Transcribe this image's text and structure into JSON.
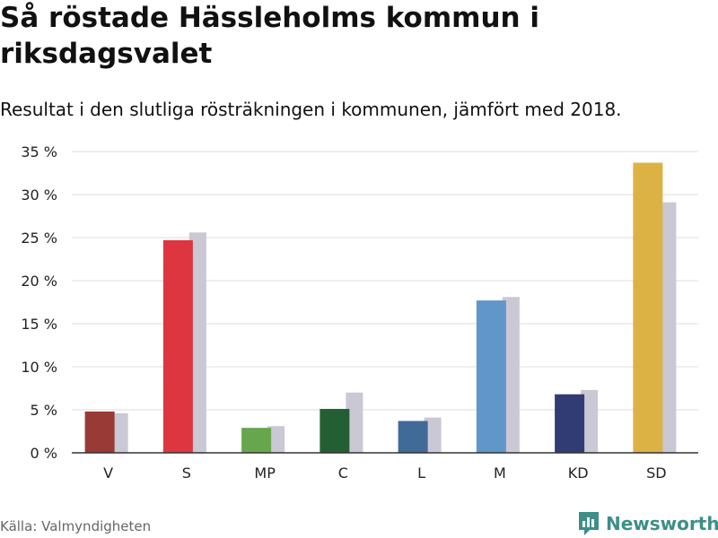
{
  "header": {
    "title": "Så röstade Hässleholms kommun i riksdagsvalet",
    "subtitle": "Resultat i den slutliga rösträkningen i kommunen, jämfört med 2018."
  },
  "footer": {
    "source": "Källa: Valmyndigheten",
    "logo_text": "Newsworthy"
  },
  "colors": {
    "previous": "#c9c8d4",
    "gridline": "#dddddd",
    "axis": "#333333",
    "logo": "#3e8e88"
  },
  "chart_data": {
    "type": "bar",
    "categories": [
      "V",
      "S",
      "MP",
      "C",
      "L",
      "M",
      "KD",
      "SD"
    ],
    "series": [
      {
        "values": [
          4.8,
          24.7,
          2.9,
          5.1,
          3.7,
          17.7,
          6.8,
          33.7
        ],
        "colors": [
          "#993a36",
          "#dd3640",
          "#67a64c",
          "#245f33",
          "#406a98",
          "#6097c8",
          "#303c73",
          "#ddb244"
        ]
      },
      {
        "values": [
          4.6,
          25.6,
          3.1,
          7.0,
          4.1,
          18.1,
          7.3,
          29.1
        ],
        "color": "#c9c8d4"
      }
    ],
    "yticks": [
      "0 %",
      "5 %",
      "10 %",
      "15 %",
      "20 %",
      "25 %",
      "30 %",
      "35 %"
    ],
    "ylim": [
      0,
      35
    ],
    "grid": true,
    "legend": "none"
  }
}
